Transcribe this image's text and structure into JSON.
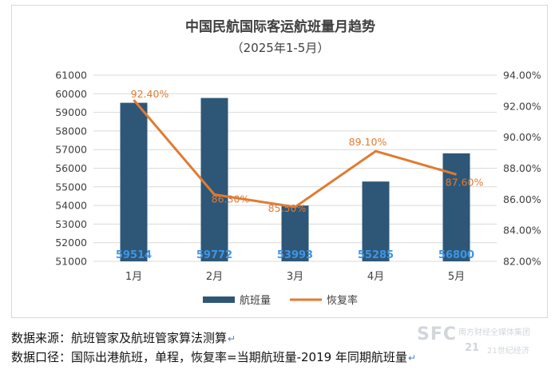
{
  "chart_data": {
    "type": "bar+line",
    "title": "中国民航国际客运航班量月趋势",
    "subtitle": "（2025年1-5月）",
    "categories": [
      "1月",
      "2月",
      "3月",
      "4月",
      "5月"
    ],
    "series": [
      {
        "name": "航班量",
        "type": "bar",
        "axis": "left",
        "color": "#2e5777",
        "values": [
          59514,
          59772,
          53993,
          55285,
          56800
        ],
        "labels": [
          "59514",
          "59772",
          "53993",
          "55285",
          "56800"
        ]
      },
      {
        "name": "恢复率",
        "type": "line",
        "axis": "right",
        "color": "#e07b32",
        "values": [
          92.4,
          86.3,
          85.5,
          89.1,
          87.6
        ],
        "labels": [
          "92.40%",
          "86.30%",
          "85.50%",
          "89.10%",
          "87.60%"
        ]
      }
    ],
    "y_left": {
      "min": 51000,
      "max": 61000,
      "step": 1000,
      "ticks": [
        "51000",
        "52000",
        "53000",
        "54000",
        "55000",
        "56000",
        "57000",
        "58000",
        "59000",
        "60000",
        "61000"
      ]
    },
    "y_right": {
      "min": 82,
      "max": 94,
      "step": 2,
      "ticks": [
        "82.00%",
        "84.00%",
        "86.00%",
        "88.00%",
        "90.00%",
        "92.00%",
        "94.00%"
      ]
    },
    "grid": true,
    "legend_position": "bottom-center"
  },
  "notes": {
    "source": "数据来源：航班管家及航班管家算法测算",
    "scope": "数据口径：国际出港航班，单程，恢复率=当期航班量-2019 年同期航班量",
    "return_mark": "↵"
  },
  "watermark": {
    "main": "SFC",
    "sub": "南方财经全媒体集团",
    "logo": "21",
    "logo_sub": "21世纪经济"
  },
  "colors": {
    "bar": "#2e5777",
    "line": "#e07b32",
    "bar_label": "#3d95e6",
    "grid": "#d9d9d9",
    "text": "#404040"
  }
}
